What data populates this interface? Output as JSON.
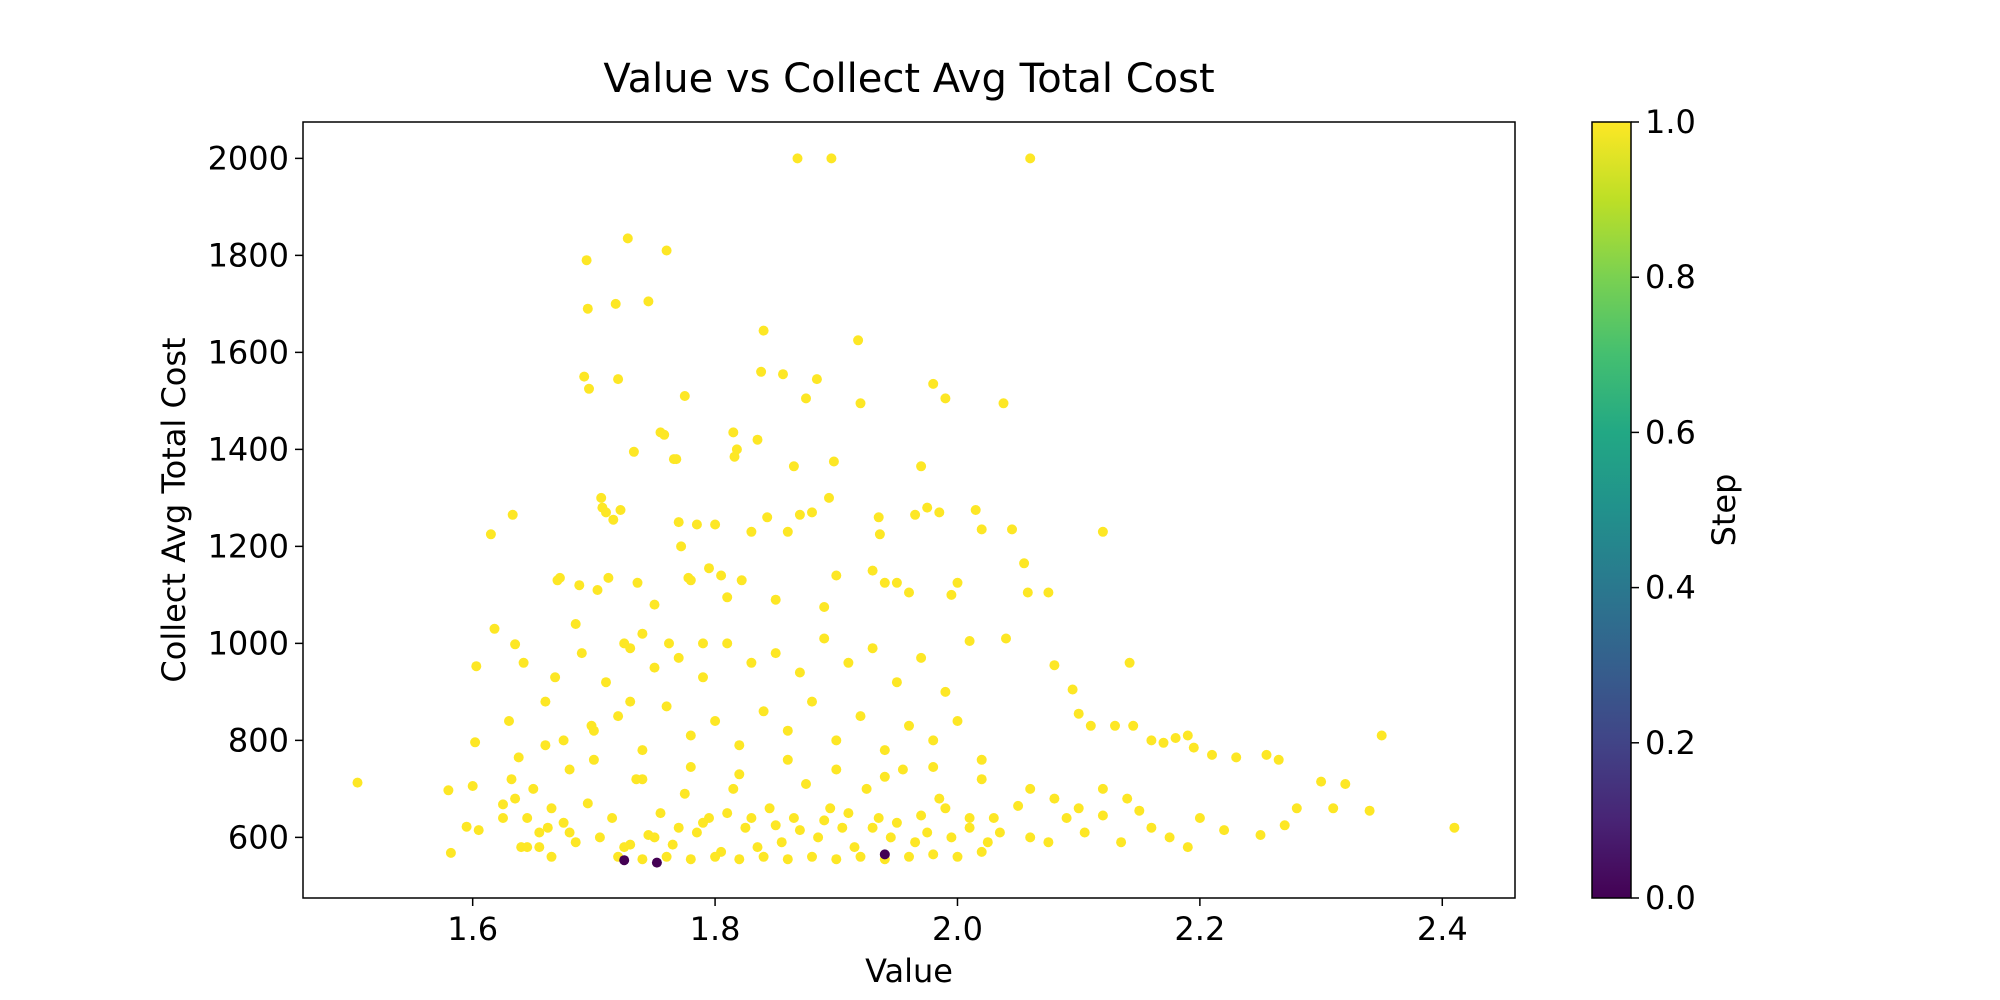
{
  "chart_data": {
    "type": "scatter",
    "title": "Value vs Collect Avg Total Cost",
    "xlabel": "Value",
    "ylabel": "Collect Avg Total Cost",
    "xlim": [
      1.46,
      2.46
    ],
    "ylim": [
      475,
      2075
    ],
    "xticks": [
      1.6,
      1.8,
      2.0,
      2.2,
      2.4
    ],
    "xtick_labels": [
      "1.6",
      "1.8",
      "2.0",
      "2.2",
      "2.4"
    ],
    "yticks": [
      600,
      800,
      1000,
      1200,
      1400,
      1600,
      1800,
      2000
    ],
    "ytick_labels": [
      "600",
      "800",
      "1000",
      "1200",
      "1400",
      "1600",
      "1800",
      "2000"
    ],
    "grid": false,
    "colorbar": {
      "label": "Step",
      "range": [
        0.0,
        1.0
      ],
      "colormap": "viridis",
      "ticks": [
        0.0,
        0.2,
        0.4,
        0.6,
        0.8,
        1.0
      ],
      "tick_labels": [
        "0.0",
        "0.2",
        "0.4",
        "0.6",
        "0.8",
        "1.0"
      ]
    },
    "point_color": "#fde725",
    "series": [
      {
        "points": [
          [
            1.505,
            713
          ],
          [
            1.58,
            697
          ],
          [
            1.582,
            568
          ],
          [
            1.595,
            622
          ],
          [
            1.6,
            706
          ],
          [
            1.602,
            796
          ],
          [
            1.603,
            953
          ],
          [
            1.605,
            615
          ],
          [
            1.615,
            1225
          ],
          [
            1.618,
            1030
          ],
          [
            1.625,
            668
          ],
          [
            1.63,
            840
          ],
          [
            1.632,
            720
          ],
          [
            1.633,
            1265
          ],
          [
            1.635,
            998
          ],
          [
            1.638,
            765
          ],
          [
            1.64,
            580
          ],
          [
            1.642,
            960
          ],
          [
            1.645,
            580
          ],
          [
            1.65,
            700
          ],
          [
            1.655,
            580
          ],
          [
            1.66,
            880
          ],
          [
            1.662,
            620
          ],
          [
            1.665,
            560
          ],
          [
            1.668,
            930
          ],
          [
            1.67,
            1130
          ],
          [
            1.672,
            1135
          ],
          [
            1.675,
            800
          ],
          [
            1.68,
            610
          ],
          [
            1.685,
            1040
          ],
          [
            1.688,
            1120
          ],
          [
            1.69,
            980
          ],
          [
            1.692,
            1550
          ],
          [
            1.694,
            1790
          ],
          [
            1.695,
            1690
          ],
          [
            1.696,
            1525
          ],
          [
            1.698,
            830
          ],
          [
            1.7,
            760
          ],
          [
            1.703,
            1110
          ],
          [
            1.706,
            1300
          ],
          [
            1.707,
            1280
          ],
          [
            1.71,
            1270
          ],
          [
            1.712,
            1135
          ],
          [
            1.716,
            1255
          ],
          [
            1.718,
            1700
          ],
          [
            1.72,
            1545
          ],
          [
            1.722,
            1275
          ],
          [
            1.725,
            1000
          ],
          [
            1.728,
            1835
          ],
          [
            1.73,
            880
          ],
          [
            1.733,
            1395
          ],
          [
            1.736,
            1125
          ],
          [
            1.74,
            1020
          ],
          [
            1.745,
            1705
          ],
          [
            1.75,
            1080
          ],
          [
            1.755,
            1435
          ],
          [
            1.758,
            1430
          ],
          [
            1.76,
            1810
          ],
          [
            1.762,
            1000
          ],
          [
            1.766,
            1380
          ],
          [
            1.768,
            1380
          ],
          [
            1.77,
            1250
          ],
          [
            1.772,
            1200
          ],
          [
            1.775,
            1510
          ],
          [
            1.778,
            1135
          ],
          [
            1.78,
            1130
          ],
          [
            1.785,
            1245
          ],
          [
            1.79,
            1000
          ],
          [
            1.795,
            1155
          ],
          [
            1.8,
            1245
          ],
          [
            1.805,
            1140
          ],
          [
            1.81,
            1095
          ],
          [
            1.815,
            1435
          ],
          [
            1.816,
            1385
          ],
          [
            1.818,
            1400
          ],
          [
            1.822,
            1130
          ],
          [
            1.83,
            1230
          ],
          [
            1.835,
            1420
          ],
          [
            1.838,
            1560
          ],
          [
            1.84,
            1645
          ],
          [
            1.843,
            1260
          ],
          [
            1.85,
            1090
          ],
          [
            1.856,
            1555
          ],
          [
            1.86,
            1230
          ],
          [
            1.865,
            1365
          ],
          [
            1.868,
            2000
          ],
          [
            1.87,
            1265
          ],
          [
            1.875,
            1505
          ],
          [
            1.88,
            1270
          ],
          [
            1.884,
            1545
          ],
          [
            1.89,
            1075
          ],
          [
            1.894,
            1300
          ],
          [
            1.896,
            2000
          ],
          [
            1.898,
            1375
          ],
          [
            1.9,
            1140
          ],
          [
            1.918,
            1625
          ],
          [
            1.92,
            1495
          ],
          [
            1.93,
            1150
          ],
          [
            1.935,
            1260
          ],
          [
            1.936,
            1225
          ],
          [
            1.94,
            1125
          ],
          [
            1.95,
            1125
          ],
          [
            1.96,
            1105
          ],
          [
            1.965,
            1265
          ],
          [
            1.97,
            1365
          ],
          [
            1.975,
            1280
          ],
          [
            1.98,
            1535
          ],
          [
            1.985,
            1270
          ],
          [
            1.99,
            1505
          ],
          [
            1.995,
            1100
          ],
          [
            2.0,
            1125
          ],
          [
            2.01,
            1005
          ],
          [
            2.015,
            1275
          ],
          [
            2.02,
            1235
          ],
          [
            2.038,
            1495
          ],
          [
            2.045,
            1235
          ],
          [
            2.055,
            1165
          ],
          [
            2.058,
            1105
          ],
          [
            2.06,
            2000
          ],
          [
            2.075,
            1105
          ],
          [
            2.08,
            955
          ],
          [
            2.095,
            905
          ],
          [
            2.1,
            855
          ],
          [
            2.11,
            830
          ],
          [
            2.12,
            1230
          ],
          [
            2.13,
            830
          ],
          [
            2.142,
            960
          ],
          [
            2.145,
            830
          ],
          [
            2.16,
            800
          ],
          [
            2.17,
            795
          ],
          [
            2.18,
            805
          ],
          [
            2.19,
            810
          ],
          [
            2.195,
            785
          ],
          [
            2.21,
            770
          ],
          [
            2.23,
            765
          ],
          [
            2.255,
            770
          ],
          [
            2.265,
            760
          ],
          [
            2.3,
            715
          ],
          [
            2.32,
            710
          ],
          [
            2.35,
            810
          ],
          [
            2.41,
            620
          ],
          [
            2.34,
            655
          ],
          [
            2.31,
            660
          ],
          [
            2.28,
            660
          ],
          [
            2.27,
            625
          ],
          [
            2.25,
            605
          ],
          [
            2.22,
            615
          ],
          [
            2.2,
            640
          ],
          [
            2.19,
            580
          ],
          [
            2.175,
            600
          ],
          [
            2.16,
            620
          ],
          [
            2.15,
            655
          ],
          [
            2.135,
            590
          ],
          [
            2.12,
            645
          ],
          [
            2.105,
            610
          ],
          [
            2.09,
            640
          ],
          [
            2.075,
            590
          ],
          [
            2.06,
            600
          ],
          [
            2.05,
            665
          ],
          [
            2.035,
            610
          ],
          [
            2.025,
            590
          ],
          [
            2.01,
            640
          ],
          [
            1.995,
            600
          ],
          [
            1.985,
            680
          ],
          [
            1.975,
            610
          ],
          [
            1.965,
            590
          ],
          [
            1.955,
            740
          ],
          [
            1.945,
            600
          ],
          [
            1.935,
            640
          ],
          [
            1.925,
            700
          ],
          [
            1.915,
            580
          ],
          [
            1.905,
            620
          ],
          [
            1.895,
            660
          ],
          [
            1.885,
            600
          ],
          [
            1.875,
            710
          ],
          [
            1.865,
            640
          ],
          [
            1.855,
            590
          ],
          [
            1.845,
            660
          ],
          [
            1.835,
            580
          ],
          [
            1.825,
            620
          ],
          [
            1.815,
            700
          ],
          [
            1.805,
            570
          ],
          [
            1.795,
            640
          ],
          [
            1.785,
            610
          ],
          [
            1.775,
            690
          ],
          [
            1.765,
            585
          ],
          [
            1.755,
            650
          ],
          [
            1.745,
            605
          ],
          [
            1.735,
            720
          ],
          [
            1.725,
            580
          ],
          [
            1.715,
            640
          ],
          [
            1.705,
            600
          ],
          [
            1.695,
            670
          ],
          [
            1.685,
            590
          ],
          [
            1.675,
            630
          ],
          [
            1.665,
            660
          ],
          [
            1.655,
            610
          ],
          [
            1.645,
            640
          ],
          [
            1.635,
            680
          ],
          [
            1.625,
            640
          ],
          [
            1.72,
            560
          ],
          [
            1.74,
            555
          ],
          [
            1.76,
            560
          ],
          [
            1.78,
            555
          ],
          [
            1.8,
            560
          ],
          [
            1.82,
            555
          ],
          [
            1.84,
            560
          ],
          [
            1.86,
            555
          ],
          [
            1.88,
            560
          ],
          [
            1.9,
            555
          ],
          [
            1.92,
            560
          ],
          [
            1.94,
            555
          ],
          [
            1.96,
            560
          ],
          [
            1.98,
            565
          ],
          [
            2.0,
            560
          ],
          [
            2.02,
            570
          ],
          [
            1.73,
            585
          ],
          [
            1.75,
            600
          ],
          [
            1.77,
            620
          ],
          [
            1.79,
            630
          ],
          [
            1.81,
            650
          ],
          [
            1.83,
            640
          ],
          [
            1.85,
            625
          ],
          [
            1.87,
            615
          ],
          [
            1.89,
            635
          ],
          [
            1.91,
            650
          ],
          [
            1.93,
            620
          ],
          [
            1.95,
            630
          ],
          [
            1.97,
            645
          ],
          [
            1.99,
            660
          ],
          [
            2.01,
            620
          ],
          [
            2.03,
            640
          ],
          [
            1.74,
            780
          ],
          [
            1.78,
            810
          ],
          [
            1.82,
            790
          ],
          [
            1.86,
            820
          ],
          [
            1.9,
            800
          ],
          [
            1.94,
            780
          ],
          [
            1.98,
            800
          ],
          [
            2.02,
            760
          ],
          [
            1.72,
            850
          ],
          [
            1.76,
            870
          ],
          [
            1.8,
            840
          ],
          [
            1.84,
            860
          ],
          [
            1.88,
            880
          ],
          [
            1.92,
            850
          ],
          [
            1.96,
            830
          ],
          [
            2.0,
            840
          ],
          [
            1.71,
            920
          ],
          [
            1.75,
            950
          ],
          [
            1.79,
            930
          ],
          [
            1.83,
            960
          ],
          [
            1.87,
            940
          ],
          [
            1.91,
            960
          ],
          [
            1.95,
            920
          ],
          [
            1.99,
            900
          ],
          [
            1.73,
            990
          ],
          [
            1.77,
            970
          ],
          [
            1.81,
            1000
          ],
          [
            1.85,
            980
          ],
          [
            1.89,
            1010
          ],
          [
            1.93,
            990
          ],
          [
            1.97,
            970
          ],
          [
            2.04,
            1010
          ],
          [
            1.68,
            740
          ],
          [
            1.66,
            790
          ],
          [
            1.7,
            820
          ],
          [
            1.74,
            720
          ],
          [
            1.78,
            745
          ],
          [
            1.82,
            730
          ],
          [
            1.86,
            760
          ],
          [
            1.9,
            740
          ],
          [
            1.94,
            725
          ],
          [
            1.98,
            745
          ],
          [
            2.02,
            720
          ],
          [
            2.06,
            700
          ],
          [
            2.08,
            680
          ],
          [
            2.1,
            660
          ],
          [
            2.12,
            700
          ],
          [
            2.14,
            680
          ]
        ]
      },
      {
        "points": [
          [
            1.752,
            548
          ],
          [
            1.725,
            553
          ],
          [
            1.94,
            565
          ]
        ],
        "color": "#440154"
      }
    ]
  }
}
